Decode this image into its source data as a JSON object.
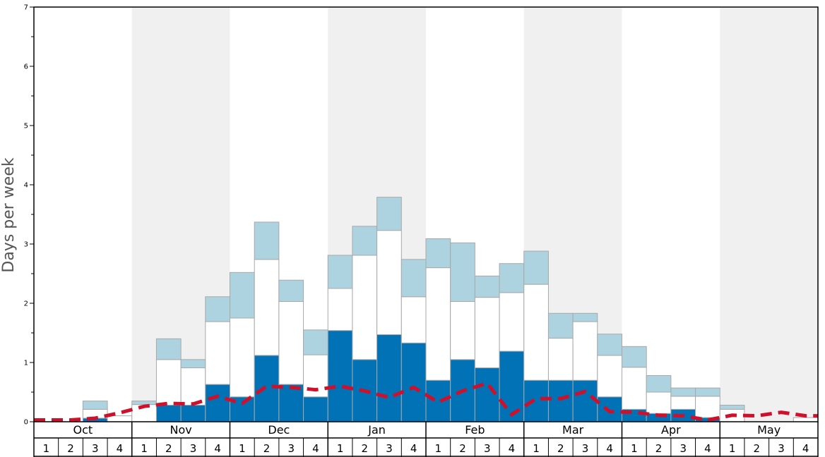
{
  "chart_data": {
    "type": "bar",
    "stacked": true,
    "ylabel": "Days per week",
    "ylim": [
      0,
      7
    ],
    "yticks": [
      "0",
      "1",
      "2",
      "3",
      "4",
      "5",
      "6",
      "7"
    ],
    "months": [
      "Oct",
      "Nov",
      "Dec",
      "Jan",
      "Feb",
      "Mar",
      "Apr",
      "May"
    ],
    "weeks": [
      "1",
      "2",
      "3",
      "4"
    ],
    "shaded_months": [
      "Nov",
      "Jan",
      "Mar",
      "May"
    ],
    "categories": [
      "Oct 1",
      "Oct 2",
      "Oct 3",
      "Oct 4",
      "Nov 1",
      "Nov 2",
      "Nov 3",
      "Nov 4",
      "Dec 1",
      "Dec 2",
      "Dec 3",
      "Dec 4",
      "Jan 1",
      "Jan 2",
      "Jan 3",
      "Jan 4",
      "Feb 1",
      "Feb 2",
      "Feb 3",
      "Feb 4",
      "Mar 1",
      "Mar 2",
      "Mar 3",
      "Mar 4",
      "Apr 1",
      "Apr 2",
      "Apr 3",
      "Apr 4",
      "May 1",
      "May 2",
      "May 3",
      "May 4"
    ],
    "series": [
      {
        "color": "#0072b5",
        "values": [
          0,
          0,
          0.06,
          0,
          0,
          0.28,
          0.28,
          0.63,
          0.42,
          1.12,
          0.63,
          0.42,
          1.54,
          1.05,
          1.47,
          1.33,
          0.7,
          1.05,
          0.91,
          1.19,
          0.7,
          0.7,
          0.7,
          0.42,
          0.21,
          0.14,
          0.21,
          0.07,
          0,
          0,
          0,
          0
        ]
      },
      {
        "color": "#ffffff",
        "values": [
          0,
          0,
          0.15,
          0.1,
          0.29,
          0.77,
          0.63,
          1.06,
          1.33,
          1.62,
          1.4,
          0.71,
          0.71,
          1.76,
          1.76,
          0.78,
          1.9,
          0.98,
          1.19,
          0.99,
          1.62,
          0.71,
          0.99,
          0.7,
          0.71,
          0.36,
          0.22,
          0.36,
          0.21,
          0,
          0,
          0.07
        ]
      },
      {
        "color": "#aed3e0",
        "values": [
          0,
          0,
          0.14,
          0,
          0.06,
          0.35,
          0.14,
          0.42,
          0.77,
          0.63,
          0.36,
          0.42,
          0.56,
          0.49,
          0.56,
          0.63,
          0.49,
          0.99,
          0.36,
          0.49,
          0.56,
          0.42,
          0.14,
          0.36,
          0.35,
          0.28,
          0.14,
          0.14,
          0.07,
          0,
          0,
          0
        ]
      }
    ],
    "trend": {
      "color": "#d0102a",
      "style": "dashed",
      "values": [
        0.03,
        0.03,
        0.06,
        0.15,
        0.26,
        0.31,
        0.3,
        0.43,
        0.31,
        0.6,
        0.58,
        0.54,
        0.6,
        0.52,
        0.41,
        0.58,
        0.33,
        0.52,
        0.65,
        0.12,
        0.39,
        0.39,
        0.51,
        0.17,
        0.16,
        0.11,
        0.1,
        0.03,
        0.11,
        0.1,
        0.16,
        0.1
      ]
    }
  }
}
